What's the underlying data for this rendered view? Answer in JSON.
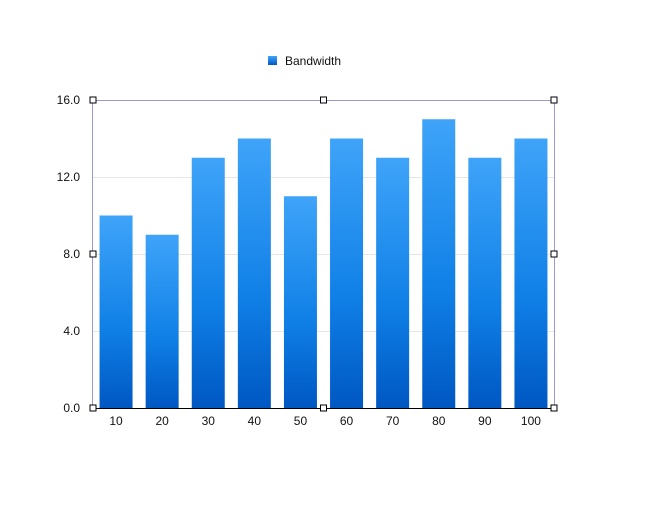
{
  "chart_data": {
    "type": "bar",
    "title": "",
    "xlabel": "",
    "ylabel": "",
    "categories": [
      "10",
      "20",
      "30",
      "40",
      "50",
      "60",
      "70",
      "80",
      "90",
      "100"
    ],
    "series": [
      {
        "name": "Bandwidth",
        "values": [
          10,
          9,
          13,
          14,
          11,
          14,
          13,
          15,
          13,
          14
        ]
      }
    ],
    "ylim": [
      0,
      16
    ],
    "yticks": [
      "0.0",
      "4.0",
      "8.0",
      "12.0",
      "16.0"
    ],
    "grid": true,
    "legend_position": "top-center",
    "colors": {
      "bar_top": "#3fa4f9",
      "bar_mid": "#0f7fe6",
      "bar_bottom": "#0057c2",
      "selection": "#9999d6",
      "gridline": "#e6e6e6"
    }
  }
}
